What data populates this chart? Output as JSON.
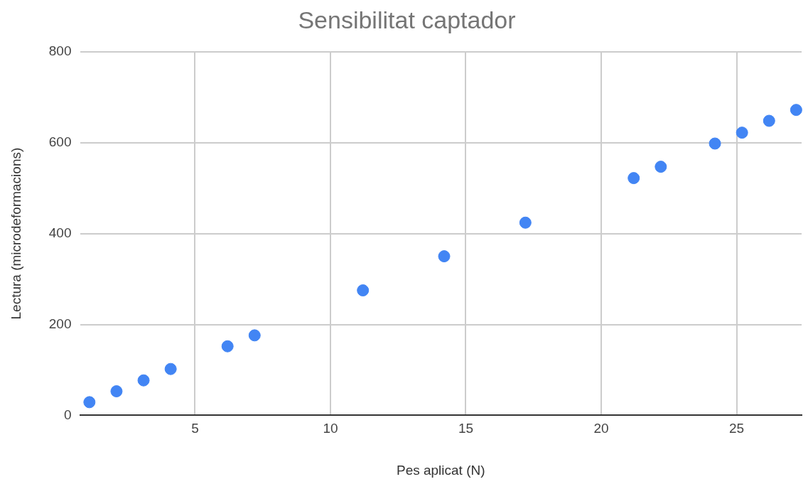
{
  "chart_data": {
    "type": "scatter",
    "title": "Sensibilitat captador",
    "xlabel": "Pes aplicat (N)",
    "ylabel": "Lectura (microdeformacions)",
    "x": [
      1.1,
      2.1,
      3.1,
      4.1,
      6.2,
      7.2,
      11.2,
      14.2,
      17.2,
      21.2,
      22.2,
      24.2,
      25.2,
      26.2,
      27.2
    ],
    "series": [
      {
        "color": "#4285f4",
        "values": [
          29,
          53,
          77,
          102,
          152,
          176,
          275,
          350,
          424,
          522,
          547,
          598,
          622,
          648,
          672
        ]
      }
    ],
    "xlim": [
      0.75,
      27.4
    ],
    "xticks": [
      5,
      10,
      15,
      20,
      25
    ],
    "ylim": [
      0,
      800
    ],
    "yticks": [
      0,
      200,
      400,
      600,
      800
    ],
    "grid": true,
    "marker": "circle",
    "legend": false
  }
}
